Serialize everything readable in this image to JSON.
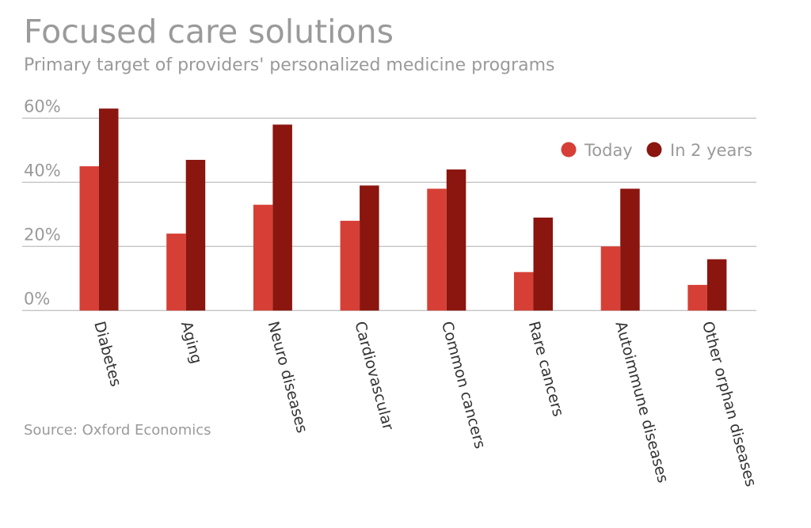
{
  "chart_data": {
    "type": "bar",
    "title": "Focused care solutions",
    "subtitle": "Primary target of providers' personalized medicine programs",
    "source": "Source: Oxford Economics",
    "categories": [
      "Diabetes",
      "Aging",
      "Neuro diseases",
      "Cardiovascular",
      "Common cancers",
      "Rare cancers",
      "Autoimmune diseases",
      "Other orphan diseases"
    ],
    "series": [
      {
        "name": "Today",
        "color": "#d63f35",
        "values": [
          45,
          24,
          33,
          28,
          38,
          12,
          20,
          8
        ]
      },
      {
        "name": "In 2 years",
        "color": "#8b150f",
        "values": [
          63,
          47,
          58,
          39,
          44,
          29,
          38,
          16
        ]
      }
    ],
    "ylim": [
      0,
      60
    ],
    "yticks": [
      0,
      20,
      40,
      60
    ],
    "ytick_labels": [
      "0%",
      "20%",
      "40%",
      "60%"
    ],
    "grid": true,
    "legend_position": "top-right"
  }
}
